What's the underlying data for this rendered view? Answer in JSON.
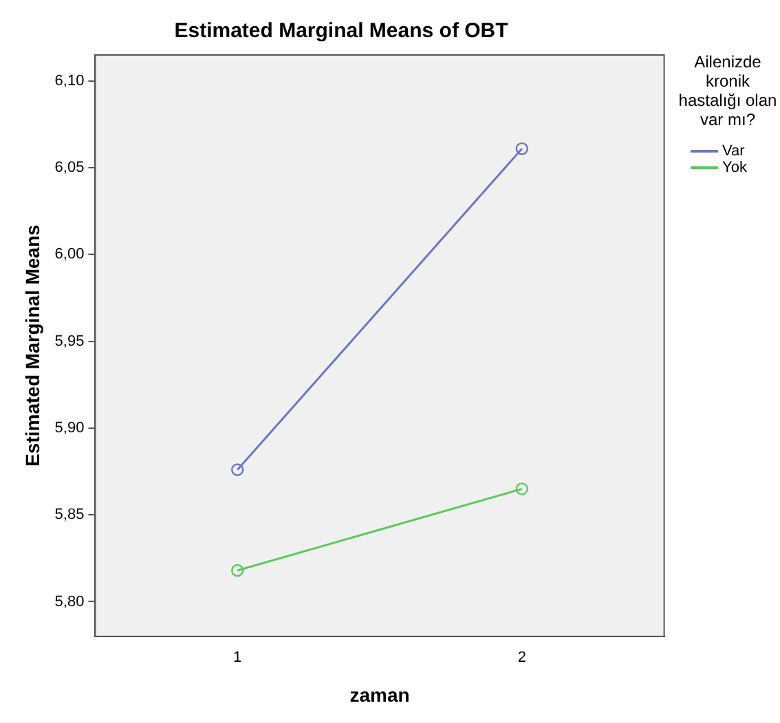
{
  "chart_data": {
    "type": "line",
    "title": "Estimated Marginal Means of OBT",
    "xlabel": "zaman",
    "ylabel": "Estimated Marginal Means",
    "legend_title": "Ailenizde kronik hastalığı olan var mı?",
    "categories": [
      "1",
      "2"
    ],
    "series": [
      {
        "name": "Var",
        "color": "#6a78c2",
        "values": [
          5.876,
          6.061
        ]
      },
      {
        "name": "Yok",
        "color": "#5cc95c",
        "values": [
          5.818,
          5.865
        ]
      }
    ],
    "ylim": [
      5.78,
      6.115
    ],
    "yticks": [
      {
        "value": 5.8,
        "label": "5,80"
      },
      {
        "value": 5.85,
        "label": "5,85"
      },
      {
        "value": 5.9,
        "label": "5,90"
      },
      {
        "value": 5.95,
        "label": "5,95"
      },
      {
        "value": 6.0,
        "label": "6,00"
      },
      {
        "value": 6.05,
        "label": "6,05"
      },
      {
        "value": 6.1,
        "label": "6,10"
      }
    ],
    "grid": false,
    "legend": "right",
    "marker": "circle",
    "line_style": "solid"
  }
}
